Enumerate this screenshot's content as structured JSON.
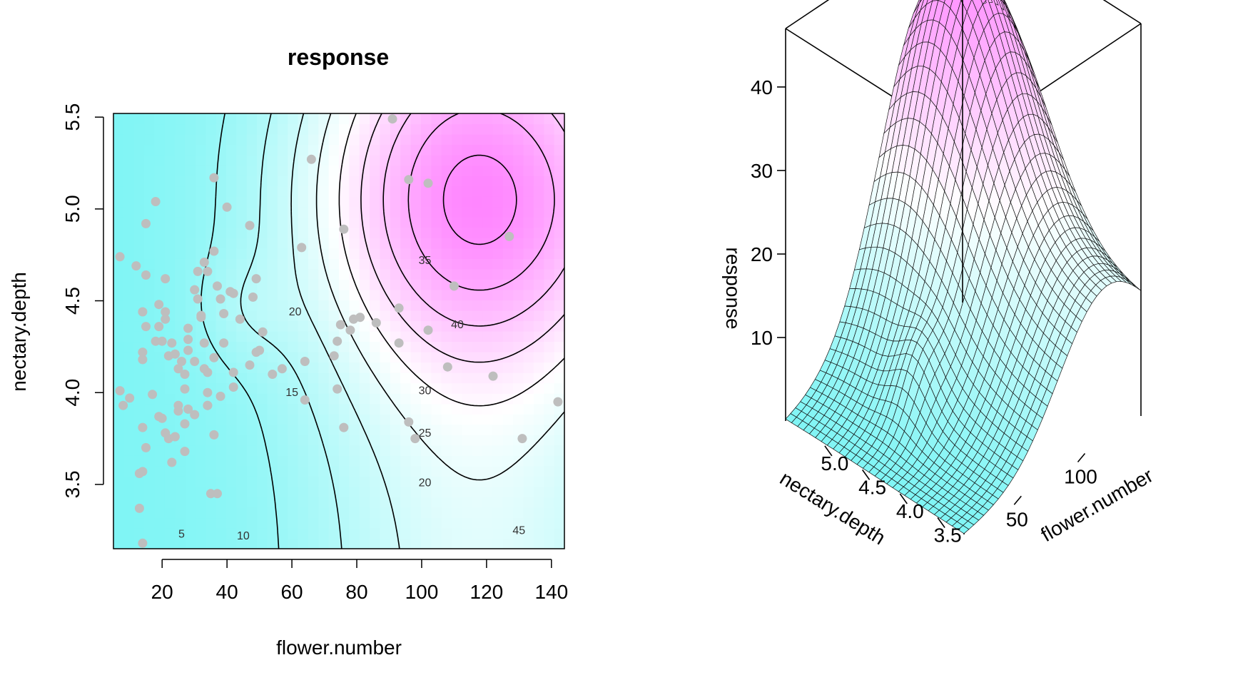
{
  "chart_data": [
    {
      "type": "heatmap",
      "title": "response",
      "xlabel": "flower.number",
      "ylabel": "nectary.depth",
      "xlim": [
        5,
        144
      ],
      "ylim": [
        3.15,
        5.52
      ],
      "x_ticks": [
        "20",
        "40",
        "60",
        "80",
        "100",
        "120",
        "140"
      ],
      "y_ticks": [
        "3.5",
        "4.0",
        "4.5",
        "5.0",
        "5.5"
      ],
      "color_low": "#7ff5f5",
      "color_mid": "#ffffff",
      "color_high": "#ff80ff",
      "point_color": "#bebebe",
      "contour_levels": [
        {
          "label": "5",
          "value": 5
        },
        {
          "label": "10",
          "value": 10
        },
        {
          "label": "15",
          "value": 15
        },
        {
          "label": "20",
          "value": 20
        },
        {
          "label": "20",
          "value": 20
        },
        {
          "label": "25",
          "value": 25
        },
        {
          "label": "30",
          "value": 30
        },
        {
          "label": "35",
          "value": 35
        },
        {
          "label": "40",
          "value": 40
        },
        {
          "label": "45",
          "value": 45
        }
      ],
      "points": [
        [
          7,
          4.74
        ],
        [
          12,
          4.69
        ],
        [
          15,
          4.64
        ],
        [
          14,
          4.44
        ],
        [
          15,
          4.36
        ],
        [
          14,
          4.22
        ],
        [
          14,
          4.18
        ],
        [
          10,
          3.97
        ],
        [
          8,
          3.93
        ],
        [
          7,
          4.01
        ],
        [
          17,
          3.99
        ],
        [
          14,
          3.81
        ],
        [
          15,
          3.7
        ],
        [
          14,
          3.57
        ],
        [
          13,
          3.56
        ],
        [
          13,
          3.37
        ],
        [
          14,
          3.18
        ],
        [
          15,
          4.92
        ],
        [
          18,
          5.04
        ],
        [
          21,
          4.62
        ],
        [
          19,
          4.48
        ],
        [
          21,
          4.44
        ],
        [
          21,
          4.4
        ],
        [
          19,
          4.36
        ],
        [
          18,
          4.28
        ],
        [
          20,
          4.28
        ],
        [
          23,
          4.27
        ],
        [
          24,
          4.21
        ],
        [
          22,
          4.2
        ],
        [
          26,
          4.17
        ],
        [
          25,
          4.13
        ],
        [
          27,
          4.1
        ],
        [
          19,
          3.87
        ],
        [
          20,
          3.86
        ],
        [
          21,
          3.78
        ],
        [
          22,
          3.75
        ],
        [
          24,
          3.76
        ],
        [
          23,
          3.62
        ],
        [
          25,
          3.93
        ],
        [
          25,
          3.9
        ],
        [
          28,
          3.91
        ],
        [
          27,
          3.83
        ],
        [
          27,
          3.68
        ],
        [
          27,
          4.02
        ],
        [
          28,
          4.23
        ],
        [
          28,
          4.29
        ],
        [
          28,
          4.35
        ],
        [
          30,
          4.56
        ],
        [
          31,
          4.51
        ],
        [
          31,
          4.66
        ],
        [
          33,
          4.71
        ],
        [
          34,
          4.66
        ],
        [
          33,
          4.27
        ],
        [
          33,
          4.13
        ],
        [
          34,
          4.11
        ],
        [
          30,
          4.17
        ],
        [
          32,
          4.41
        ],
        [
          32,
          4.42
        ],
        [
          34,
          4.0
        ],
        [
          34,
          3.93
        ],
        [
          30,
          3.88
        ],
        [
          34,
          3.93
        ],
        [
          36,
          5.17
        ],
        [
          36,
          4.77
        ],
        [
          37,
          4.58
        ],
        [
          38,
          4.51
        ],
        [
          39,
          4.43
        ],
        [
          38,
          3.98
        ],
        [
          39,
          4.27
        ],
        [
          36,
          4.19
        ],
        [
          36,
          3.77
        ],
        [
          35,
          3.45
        ],
        [
          37,
          3.45
        ],
        [
          40,
          5.01
        ],
        [
          41,
          4.55
        ],
        [
          42,
          4.54
        ],
        [
          42,
          4.11
        ],
        [
          42,
          4.03
        ],
        [
          44,
          4.4
        ],
        [
          47,
          4.91
        ],
        [
          48,
          4.52
        ],
        [
          47,
          4.15
        ],
        [
          49,
          4.62
        ],
        [
          49,
          4.22
        ],
        [
          50,
          4.23
        ],
        [
          51,
          4.33
        ],
        [
          54,
          4.1
        ],
        [
          57,
          4.13
        ],
        [
          63,
          4.79
        ],
        [
          64,
          4.17
        ],
        [
          64,
          3.96
        ],
        [
          66,
          5.27
        ],
        [
          73,
          4.2
        ],
        [
          74,
          4.28
        ],
        [
          74,
          4.02
        ],
        [
          75,
          4.37
        ],
        [
          76,
          4.89
        ],
        [
          76,
          3.81
        ],
        [
          78,
          4.34
        ],
        [
          79,
          4.4
        ],
        [
          81,
          4.41
        ],
        [
          86,
          4.38
        ],
        [
          91,
          5.49
        ],
        [
          93,
          4.46
        ],
        [
          93,
          4.27
        ],
        [
          96,
          5.16
        ],
        [
          96,
          3.84
        ],
        [
          98,
          3.75
        ],
        [
          102,
          5.14
        ],
        [
          102,
          4.34
        ],
        [
          108,
          4.14
        ],
        [
          110,
          4.58
        ],
        [
          122,
          4.09
        ],
        [
          127,
          4.85
        ],
        [
          131,
          3.75
        ],
        [
          142,
          3.95
        ]
      ]
    },
    {
      "type": "surface",
      "xlabel": "flower.number",
      "ylabel": "nectary.depth",
      "zlabel": "response",
      "x_ticks": [
        "50",
        "100"
      ],
      "y_ticks": [
        "5.0",
        "4.5",
        "4.0",
        "3.5"
      ],
      "z_ticks": [
        "10",
        "20",
        "30",
        "40"
      ],
      "xlim": [
        5,
        144
      ],
      "ylim": [
        3.15,
        5.52
      ],
      "zlim": [
        0,
        47
      ]
    }
  ]
}
